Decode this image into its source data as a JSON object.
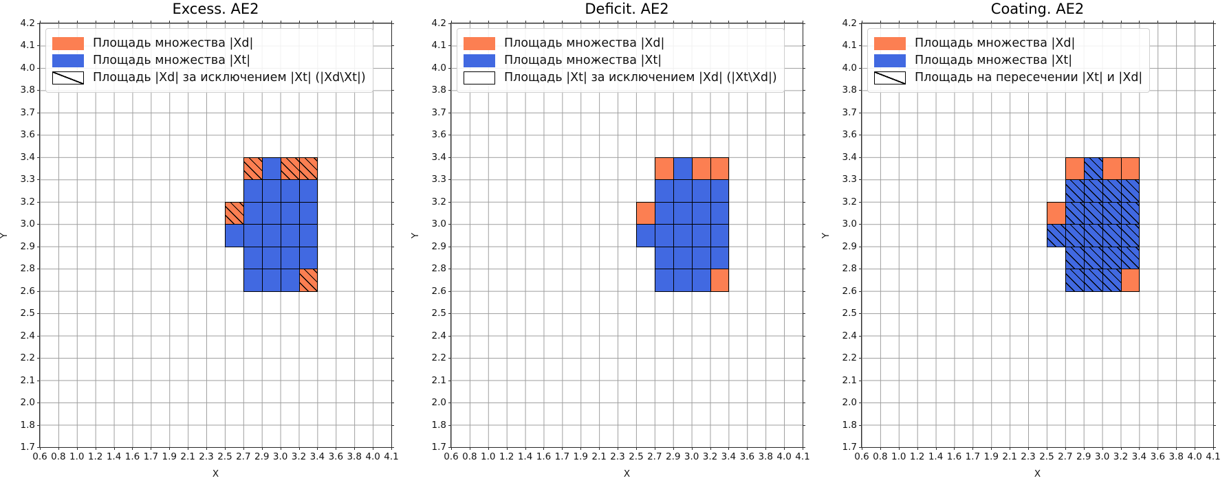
{
  "figure": {
    "background": "#ffffff",
    "colors": {
      "set_xd_orange": "#fc7f52",
      "set_xt_blue": "#4169e1",
      "grid_line": "#9e9e9e",
      "axes_border": "#2b2b2b",
      "cell_border": "#000000",
      "legend_border": "#cfcfcf",
      "hatch": "#000000"
    },
    "axis": {
      "x_label": "X",
      "y_label": "Y",
      "x_tick_labels": [
        "0.6",
        "0.8",
        "1.0",
        "1.2",
        "1.4",
        "1.6",
        "1.7",
        "1.9",
        "2.1",
        "2.3",
        "2.5",
        "2.7",
        "2.9",
        "3.0",
        "3.2",
        "3.4",
        "3.6",
        "3.8",
        "4.0",
        "4.1"
      ],
      "y_tick_labels_top_down": [
        "4.2",
        "4.1",
        "4.0",
        "3.8",
        "3.7",
        "3.6",
        "3.4",
        "3.3",
        "3.2",
        "3.0",
        "2.9",
        "2.8",
        "2.6",
        "2.5",
        "2.4",
        "2.2",
        "2.1",
        "2.0",
        "1.8",
        "1.7"
      ]
    },
    "cell_grid": {
      "col_start_tick_index": 10,
      "row_start_tick_index_from_top": 6,
      "rows_top_down": [
        ".OBOO",
        ".BBBB",
        "OBBBB",
        "BBBBB",
        ".BBBB",
        ".BBBO"
      ],
      "cell_codes": {
        "O": "set |Xd| orange",
        "B": "set |Xt| blue",
        ".": "empty"
      }
    },
    "plots": [
      {
        "title": "Excess. AE2",
        "hatched_cells": "orange",
        "legend": [
          {
            "swatch": "orange-solid",
            "label": "Площадь множества |Xd|"
          },
          {
            "swatch": "blue-solid",
            "label": "Площадь множества  |Xt|"
          },
          {
            "swatch": "hatched-empty",
            "label": "Площадь |Xd| за исключением |Xt| (|Xd\\Xt|)"
          }
        ]
      },
      {
        "title": "Deficit. AE2",
        "hatched_cells": "none",
        "legend": [
          {
            "swatch": "orange-solid",
            "label": "Площадь множества |Xd|"
          },
          {
            "swatch": "blue-solid",
            "label": "Площадь множества  |Xt|"
          },
          {
            "swatch": "white-empty",
            "label": "Площадь |Xt| за исключением |Xd| (|Xt\\Xd|)"
          }
        ]
      },
      {
        "title": "Coating. AE2",
        "hatched_cells": "blue",
        "legend": [
          {
            "swatch": "orange-solid",
            "label": "Площадь множества |Xd|"
          },
          {
            "swatch": "blue-solid",
            "label": "Площадь множества  |Xt|"
          },
          {
            "swatch": "hatched-empty",
            "label": "Площадь на пересечении |Xt| и |Xd|"
          }
        ]
      }
    ]
  },
  "chart_data": [
    {
      "type": "heatmap",
      "title": "Excess. AE2",
      "xlabel": "X",
      "ylabel": "Y",
      "x_tick_labels": [
        "0.6",
        "0.8",
        "1.0",
        "1.2",
        "1.4",
        "1.6",
        "1.7",
        "1.9",
        "2.1",
        "2.3",
        "2.5",
        "2.7",
        "2.9",
        "3.0",
        "3.2",
        "3.4",
        "3.6",
        "3.8",
        "4.0",
        "4.1"
      ],
      "y_tick_labels_top_down": [
        "4.2",
        "4.1",
        "4.0",
        "3.8",
        "3.7",
        "3.6",
        "3.4",
        "3.3",
        "3.2",
        "3.0",
        "2.9",
        "2.8",
        "2.6",
        "2.5",
        "2.4",
        "2.2",
        "2.1",
        "2.0",
        "1.8",
        "1.7"
      ],
      "grid": true,
      "legend_position": "upper left",
      "legend": [
        "Площадь множества |Xd|",
        "Площадь множества  |Xt|",
        "Площадь |Xd| за исключением |Xt| (|Xd\\Xt|)"
      ],
      "cell_columns_x_ranges": [
        [
          2.5,
          2.7
        ],
        [
          2.7,
          2.9
        ],
        [
          2.9,
          3.0
        ],
        [
          3.0,
          3.2
        ],
        [
          3.2,
          3.4
        ]
      ],
      "cell_rows_y_ranges_top_down": [
        [
          3.3,
          3.4
        ],
        [
          3.2,
          3.3
        ],
        [
          3.0,
          3.2
        ],
        [
          2.9,
          3.0
        ],
        [
          2.8,
          2.9
        ],
        [
          2.6,
          2.8
        ]
      ],
      "cells_top_down": [
        ".OBOO",
        ".BBBB",
        "OBBBB",
        "BBBBB",
        ".BBBB",
        ".BBBO"
      ],
      "cell_codes": {
        "O": "set |Xd| (orange #fc7f52)",
        "B": "set |Xt| (blue #4169e1)",
        ".": "empty"
      },
      "hatched": "orange cells carry / hatch (area |Xd\\Xt|)"
    },
    {
      "type": "heatmap",
      "title": "Deficit. AE2",
      "xlabel": "X",
      "ylabel": "Y",
      "x_tick_labels": [
        "0.6",
        "0.8",
        "1.0",
        "1.2",
        "1.4",
        "1.6",
        "1.7",
        "1.9",
        "2.1",
        "2.3",
        "2.5",
        "2.7",
        "2.9",
        "3.0",
        "3.2",
        "3.4",
        "3.6",
        "3.8",
        "4.0",
        "4.1"
      ],
      "y_tick_labels_top_down": [
        "4.2",
        "4.1",
        "4.0",
        "3.8",
        "3.7",
        "3.6",
        "3.4",
        "3.3",
        "3.2",
        "3.0",
        "2.9",
        "2.8",
        "2.6",
        "2.5",
        "2.4",
        "2.2",
        "2.1",
        "2.0",
        "1.8",
        "1.7"
      ],
      "grid": true,
      "legend_position": "upper left",
      "legend": [
        "Площадь множества |Xd|",
        "Площадь множества  |Xt|",
        "Площадь |Xt| за исключением |Xd| (|Xt\\Xd|)"
      ],
      "cell_columns_x_ranges": [
        [
          2.5,
          2.7
        ],
        [
          2.7,
          2.9
        ],
        [
          2.9,
          3.0
        ],
        [
          3.0,
          3.2
        ],
        [
          3.2,
          3.4
        ]
      ],
      "cell_rows_y_ranges_top_down": [
        [
          3.3,
          3.4
        ],
        [
          3.2,
          3.3
        ],
        [
          3.0,
          3.2
        ],
        [
          2.9,
          3.0
        ],
        [
          2.8,
          2.9
        ],
        [
          2.6,
          2.8
        ]
      ],
      "cells_top_down": [
        ".OBOO",
        ".BBBB",
        "OBBBB",
        "BBBBB",
        ".BBBB",
        ".BBBO"
      ],
      "cell_codes": {
        "O": "set |Xd| (orange #fc7f52)",
        "B": "set |Xt| (blue #4169e1)",
        ".": "empty"
      },
      "hatched": "no cells hatched (area |Xt\\Xd| is empty)"
    },
    {
      "type": "heatmap",
      "title": "Coating. AE2",
      "xlabel": "X",
      "ylabel": "Y",
      "x_tick_labels": [
        "0.6",
        "0.8",
        "1.0",
        "1.2",
        "1.4",
        "1.6",
        "1.7",
        "1.9",
        "2.1",
        "2.3",
        "2.5",
        "2.7",
        "2.9",
        "3.0",
        "3.2",
        "3.4",
        "3.6",
        "3.8",
        "4.0",
        "4.1"
      ],
      "y_tick_labels_top_down": [
        "4.2",
        "4.1",
        "4.0",
        "3.8",
        "3.7",
        "3.6",
        "3.4",
        "3.3",
        "3.2",
        "3.0",
        "2.9",
        "2.8",
        "2.6",
        "2.5",
        "2.4",
        "2.2",
        "2.1",
        "2.0",
        "1.8",
        "1.7"
      ],
      "grid": true,
      "legend_position": "upper left",
      "legend": [
        "Площадь множества |Xd|",
        "Площадь множества  |Xt|",
        "Площадь на пересечении |Xt| и |Xd|"
      ],
      "cell_columns_x_ranges": [
        [
          2.5,
          2.7
        ],
        [
          2.7,
          2.9
        ],
        [
          2.9,
          3.0
        ],
        [
          3.0,
          3.2
        ],
        [
          3.2,
          3.4
        ]
      ],
      "cell_rows_y_ranges_top_down": [
        [
          3.3,
          3.4
        ],
        [
          3.2,
          3.3
        ],
        [
          3.0,
          3.2
        ],
        [
          2.9,
          3.0
        ],
        [
          2.8,
          2.9
        ],
        [
          2.6,
          2.8
        ]
      ],
      "cells_top_down": [
        ".OBOO",
        ".BBBB",
        "OBBBB",
        "BBBBB",
        ".BBBB",
        ".BBBO"
      ],
      "cell_codes": {
        "O": "set |Xd| (orange #fc7f52)",
        "B": "set |Xt| (blue #4169e1)",
        ".": "empty"
      },
      "hatched": "blue cells carry / hatch (intersection of |Xt| and |Xd|)"
    }
  ]
}
